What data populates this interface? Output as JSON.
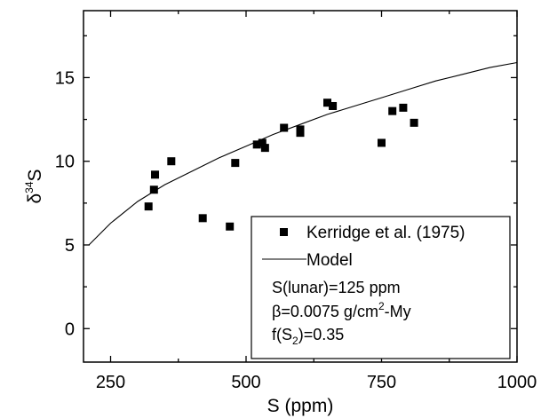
{
  "chart_data": {
    "type": "scatter",
    "title": "",
    "xlabel": "S (ppm)",
    "ylabel_parts": {
      "delta": "δ",
      "sup": "34",
      "base": "S"
    },
    "xlim": [
      200,
      1000
    ],
    "ylim": [
      -2,
      19
    ],
    "xticks": [
      250,
      500,
      750,
      1000
    ],
    "yticks": [
      0,
      5,
      10,
      15
    ],
    "grid": false,
    "legend_position": "bottom-right",
    "series": [
      {
        "name": "Kerridge et al. (1975)",
        "marker": "square",
        "color": "#000000",
        "points": [
          [
            320,
            7.3
          ],
          [
            330,
            8.3
          ],
          [
            332,
            9.2
          ],
          [
            362,
            10.0
          ],
          [
            420,
            6.6
          ],
          [
            470,
            6.1
          ],
          [
            480,
            9.9
          ],
          [
            520,
            11.0
          ],
          [
            530,
            11.1
          ],
          [
            535,
            10.8
          ],
          [
            570,
            12.0
          ],
          [
            600,
            11.9
          ],
          [
            600,
            11.7
          ],
          [
            650,
            13.5
          ],
          [
            660,
            13.3
          ],
          [
            750,
            11.1
          ],
          [
            770,
            13.0
          ],
          [
            790,
            13.2
          ],
          [
            810,
            12.3
          ]
        ]
      },
      {
        "name": "Model",
        "style": "line",
        "color": "#000000",
        "points": [
          [
            210,
            5.0
          ],
          [
            250,
            6.3
          ],
          [
            300,
            7.6
          ],
          [
            350,
            8.6
          ],
          [
            400,
            9.4
          ],
          [
            450,
            10.2
          ],
          [
            500,
            10.9
          ],
          [
            550,
            11.6
          ],
          [
            600,
            12.2
          ],
          [
            650,
            12.8
          ],
          [
            700,
            13.3
          ],
          [
            750,
            13.8
          ],
          [
            800,
            14.3
          ],
          [
            850,
            14.8
          ],
          [
            900,
            15.2
          ],
          [
            950,
            15.6
          ],
          [
            1000,
            15.9
          ]
        ]
      }
    ],
    "annotations": {
      "line1": "S(lunar)=125 ppm",
      "line2_beta": "β",
      "line2_mid": "=0.0075 g/cm",
      "line2_sup": "2",
      "line2_end": "-My",
      "line3_pre": "f(S",
      "line3_sub": "2",
      "line3_end": ")=0.35"
    }
  }
}
